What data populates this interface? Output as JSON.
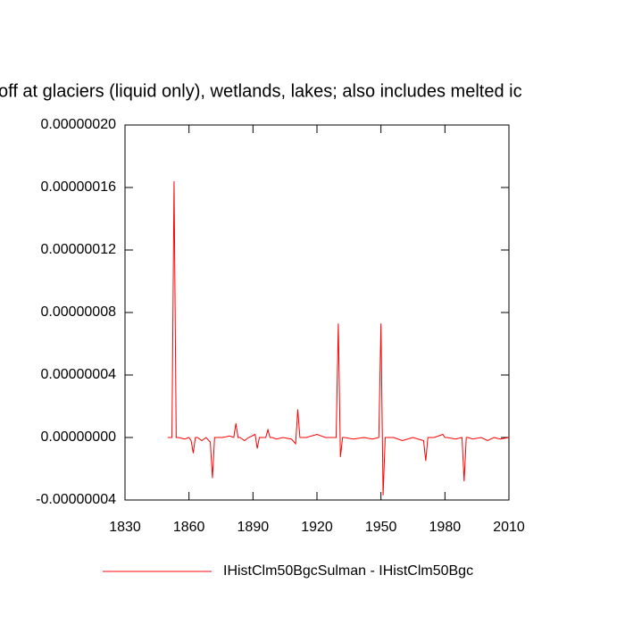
{
  "chart_data": {
    "type": "line",
    "title": "off at glaciers (liquid only), wetlands, lakes; also includes melted ic",
    "x": [
      1850,
      1851,
      1852,
      1853,
      1854,
      1855,
      1858,
      1860,
      1861,
      1862,
      1863,
      1864,
      1866,
      1868,
      1870,
      1871,
      1872,
      1873,
      1874,
      1876,
      1879,
      1881,
      1882,
      1883,
      1884,
      1886,
      1888,
      1891,
      1892,
      1893,
      1894,
      1896,
      1897,
      1898,
      1899,
      1901,
      1904,
      1908,
      1910,
      1911,
      1912,
      1913,
      1915,
      1920,
      1924,
      1926,
      1929,
      1930,
      1931,
      1932,
      1933,
      1937,
      1942,
      1946,
      1949,
      1950,
      1951,
      1952,
      1956,
      1960,
      1965,
      1970,
      1971,
      1972,
      1975,
      1979,
      1980,
      1981,
      1985,
      1988,
      1989,
      1990,
      1991,
      1993,
      1997,
      2000,
      2003,
      2006,
      2010
    ],
    "series": [
      {
        "name": "IHistClm50BgcSulman - IHistClm50Bgc",
        "color": "#ff0000",
        "values": [
          0,
          0,
          0,
          1.64e-07,
          0,
          0,
          -1e-09,
          0,
          -2e-09,
          -1e-08,
          0,
          0,
          -2e-09,
          0,
          -3e-09,
          -2.6e-08,
          0,
          0,
          0,
          0,
          1e-09,
          0,
          9e-09,
          0,
          0,
          -2e-09,
          0,
          2e-09,
          -7e-09,
          0,
          0,
          0,
          5e-09,
          0,
          0,
          -1e-09,
          0,
          -1e-09,
          -4e-09,
          1.8e-08,
          0,
          0,
          0,
          2e-09,
          0,
          0,
          0,
          7.3e-08,
          -1.25e-08,
          0,
          0,
          -1e-09,
          0,
          -1e-09,
          0,
          7.3e-08,
          -3.7e-08,
          0,
          0,
          -2e-09,
          0,
          -2e-09,
          -1.5e-08,
          0,
          0,
          2e-09,
          0,
          0,
          -1e-09,
          0,
          -2.8e-08,
          0,
          0,
          -1e-09,
          0,
          -2e-09,
          0,
          -1e-09,
          0
        ]
      }
    ],
    "xlim": [
      1830,
      2010
    ],
    "xticks": [
      1830,
      1860,
      1890,
      1920,
      1950,
      1980,
      2010
    ],
    "ylim": [
      -4e-08,
      2e-07
    ],
    "yticks": [
      {
        "value": -4e-08,
        "label": "-0.00000004"
      },
      {
        "value": 0,
        "label": "0.00000000"
      },
      {
        "value": 4e-08,
        "label": "0.00000004"
      },
      {
        "value": 8e-08,
        "label": "0.00000008"
      },
      {
        "value": 1.2e-07,
        "label": "0.00000012"
      },
      {
        "value": 1.6e-07,
        "label": "0.00000016"
      },
      {
        "value": 2e-07,
        "label": "0.00000020"
      }
    ],
    "grid": false
  }
}
